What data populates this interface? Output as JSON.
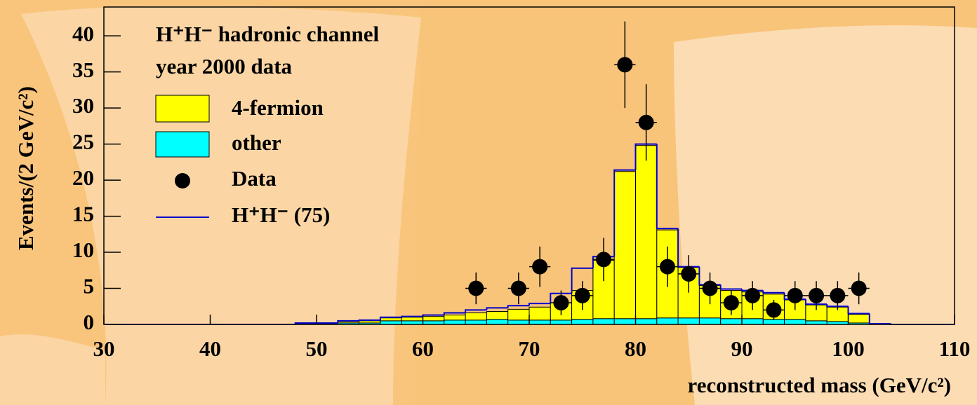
{
  "chart_data": {
    "type": "histogram",
    "annotations": [
      "H⁺H⁻ hadronic channel",
      "year 2000 data"
    ],
    "x_label": "reconstructed mass (GeV/c²)",
    "y_label": "Events/(2 GeV/c²)",
    "bins": [
      30,
      32,
      34,
      36,
      38,
      40,
      42,
      44,
      46,
      48,
      50,
      52,
      54,
      56,
      58,
      60,
      62,
      64,
      66,
      68,
      70,
      72,
      74,
      76,
      78,
      80,
      82,
      84,
      86,
      88,
      90,
      92,
      94,
      96,
      98,
      100,
      102,
      104,
      106,
      108,
      110
    ],
    "series": [
      {
        "name": "4-fermion",
        "color": "#ffff00",
        "stacked": true,
        "values": [
          0,
          0,
          0,
          0,
          0,
          0,
          0,
          0,
          0,
          0.1,
          0.1,
          0.2,
          0.3,
          0.4,
          0.5,
          0.6,
          0.7,
          1.0,
          1.1,
          1.5,
          1.8,
          2.4,
          4.0,
          8.1,
          20.4,
          24.0,
          12.2,
          7.0,
          4.5,
          3.9,
          3.7,
          3.5,
          2.7,
          2.2,
          2.0,
          1.2,
          0.1,
          0,
          0,
          0
        ]
      },
      {
        "name": "other",
        "color": "#00ffff",
        "stacked": true,
        "values": [
          0,
          0,
          0,
          0,
          0,
          0,
          0,
          0,
          0,
          0.1,
          0.1,
          0.2,
          0.2,
          0.5,
          0.5,
          0.5,
          0.6,
          0.6,
          0.7,
          0.6,
          0.6,
          0.6,
          0.7,
          0.8,
          0.8,
          0.8,
          0.9,
          0.9,
          0.9,
          0.8,
          0.8,
          0.7,
          0.7,
          0.5,
          0.4,
          0.2,
          0,
          0,
          0,
          0
        ]
      },
      {
        "name": "H⁺H⁻ (75)",
        "color": "#0000cc",
        "stacked": false,
        "values": [
          0,
          0,
          0,
          0,
          0,
          0,
          0,
          0,
          0,
          0.2,
          0.2,
          0.5,
          0.6,
          1.0,
          1.1,
          1.3,
          1.6,
          2.0,
          2.3,
          2.6,
          2.9,
          4.3,
          7.8,
          9.4,
          21.4,
          25.0,
          13.3,
          8.0,
          5.5,
          4.9,
          4.7,
          4.4,
          3.5,
          2.8,
          2.5,
          1.5,
          0.1,
          0,
          0,
          0
        ]
      }
    ],
    "points": {
      "name": "Data",
      "color": "#000000",
      "x": [
        65,
        69,
        71,
        73,
        75,
        77,
        79,
        81,
        83,
        85,
        87,
        89,
        91,
        93,
        95,
        97,
        99,
        101
      ],
      "values": [
        5,
        5,
        8,
        3,
        4,
        9,
        36,
        28,
        8,
        7,
        5,
        3,
        4,
        2,
        4,
        4,
        4,
        5
      ],
      "errors": [
        2.2,
        2.2,
        2.8,
        1.7,
        2,
        3,
        6,
        5.3,
        2.8,
        2.6,
        2.2,
        1.7,
        2,
        1.4,
        2,
        2,
        2,
        2.2
      ]
    },
    "xlim": [
      30,
      110
    ],
    "ylim": [
      0,
      44
    ],
    "xticks": [
      30,
      40,
      50,
      60,
      70,
      80,
      90,
      100,
      110
    ],
    "yticks": [
      0,
      5,
      10,
      15,
      20,
      25,
      30,
      35,
      40
    ]
  }
}
